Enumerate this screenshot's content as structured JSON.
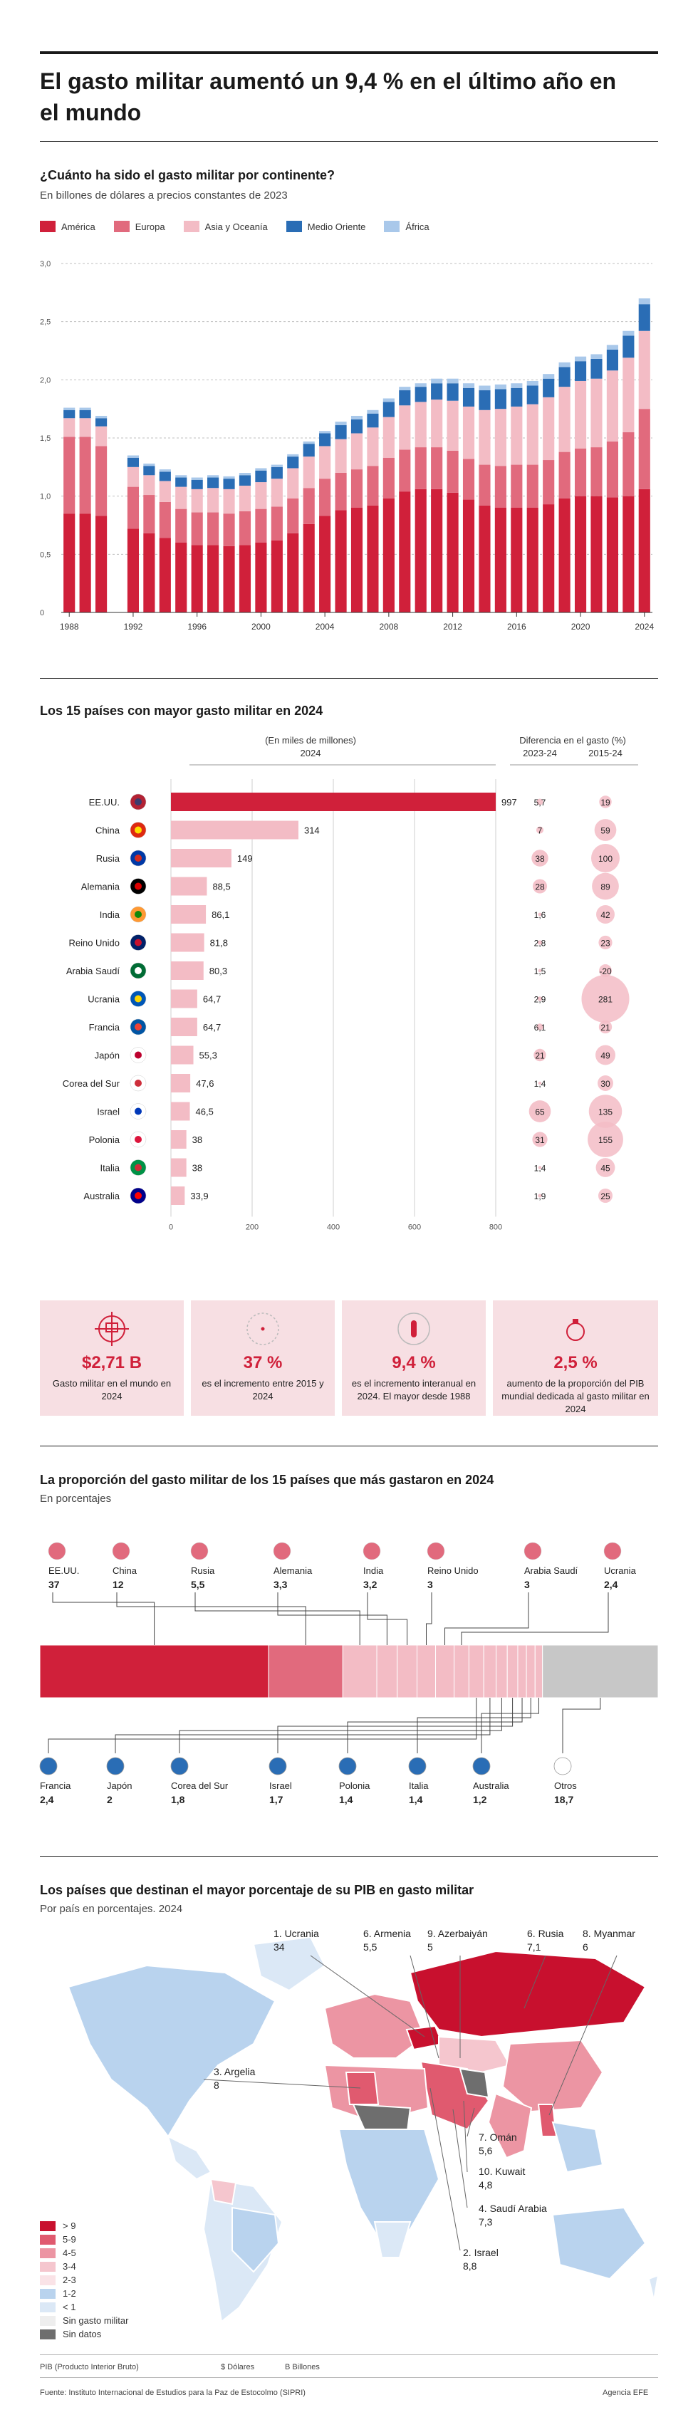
{
  "title": "El gasto militar aumentó un 9,4 % en el último año en el mundo",
  "continents": {
    "title": "¿Cuánto ha sido el gasto militar por continente?",
    "subtitle": "En billones de dólares a precios constantes de 2023",
    "legend": [
      {
        "name": "América",
        "color": "#d0203a"
      },
      {
        "name": "Europa",
        "color": "#e16a7d"
      },
      {
        "name": "Asia y Oceanía",
        "color": "#f3bcc5"
      },
      {
        "name": "Medio Oriente",
        "color": "#2a6db5"
      },
      {
        "name": "África",
        "color": "#a9c8ea"
      }
    ]
  },
  "chart_data": [
    {
      "type": "bar",
      "stacked": true,
      "title": "¿Cuánto ha sido el gasto militar por continente?",
      "ylabel": "En billones de dólares a precios constantes de 2023",
      "ylim": [
        0,
        3.0
      ],
      "yticks": [
        "3,0",
        "2,5",
        "2,0",
        "1,5",
        "1,0",
        "0,5",
        "0"
      ],
      "xtick_labels": [
        "1988",
        "1992",
        "1996",
        "2000",
        "2004",
        "2008",
        "2012",
        "2016",
        "2020",
        "2024"
      ],
      "gap_after": "1990",
      "categories": [
        "1988",
        "1989",
        "1990",
        "1992",
        "1993",
        "1994",
        "1995",
        "1996",
        "1997",
        "1998",
        "1999",
        "2000",
        "2001",
        "2002",
        "2003",
        "2004",
        "2005",
        "2006",
        "2007",
        "2008",
        "2009",
        "2010",
        "2011",
        "2012",
        "2013",
        "2014",
        "2015",
        "2016",
        "2017",
        "2018",
        "2019",
        "2020",
        "2021",
        "2022",
        "2023",
        "2024"
      ],
      "series": [
        {
          "name": "América",
          "values": [
            0.85,
            0.85,
            0.83,
            0.72,
            0.68,
            0.64,
            0.6,
            0.58,
            0.58,
            0.57,
            0.58,
            0.6,
            0.62,
            0.68,
            0.76,
            0.83,
            0.88,
            0.9,
            0.92,
            0.98,
            1.04,
            1.06,
            1.06,
            1.03,
            0.97,
            0.92,
            0.9,
            0.9,
            0.9,
            0.93,
            0.98,
            1.0,
            1.0,
            0.99,
            1.0,
            1.06
          ]
        },
        {
          "name": "Europa",
          "values": [
            0.66,
            0.66,
            0.6,
            0.36,
            0.33,
            0.31,
            0.29,
            0.28,
            0.28,
            0.28,
            0.29,
            0.29,
            0.29,
            0.3,
            0.31,
            0.32,
            0.32,
            0.33,
            0.34,
            0.35,
            0.36,
            0.36,
            0.36,
            0.36,
            0.35,
            0.35,
            0.36,
            0.37,
            0.37,
            0.38,
            0.4,
            0.41,
            0.42,
            0.48,
            0.55,
            0.69
          ]
        },
        {
          "name": "Asia y Oceanía",
          "values": [
            0.16,
            0.16,
            0.17,
            0.17,
            0.17,
            0.18,
            0.19,
            0.2,
            0.21,
            0.21,
            0.22,
            0.23,
            0.24,
            0.26,
            0.27,
            0.28,
            0.29,
            0.31,
            0.33,
            0.35,
            0.38,
            0.39,
            0.41,
            0.43,
            0.45,
            0.47,
            0.49,
            0.5,
            0.52,
            0.54,
            0.56,
            0.58,
            0.59,
            0.61,
            0.64,
            0.67
          ]
        },
        {
          "name": "Medio Oriente",
          "values": [
            0.07,
            0.07,
            0.07,
            0.08,
            0.08,
            0.08,
            0.08,
            0.08,
            0.09,
            0.09,
            0.09,
            0.1,
            0.1,
            0.1,
            0.11,
            0.11,
            0.12,
            0.12,
            0.12,
            0.13,
            0.13,
            0.13,
            0.14,
            0.15,
            0.16,
            0.17,
            0.17,
            0.16,
            0.16,
            0.16,
            0.17,
            0.17,
            0.17,
            0.18,
            0.19,
            0.23
          ]
        },
        {
          "name": "África",
          "values": [
            0.02,
            0.02,
            0.02,
            0.02,
            0.02,
            0.02,
            0.02,
            0.02,
            0.02,
            0.02,
            0.02,
            0.02,
            0.02,
            0.02,
            0.02,
            0.02,
            0.03,
            0.03,
            0.03,
            0.03,
            0.03,
            0.03,
            0.04,
            0.04,
            0.04,
            0.04,
            0.04,
            0.04,
            0.04,
            0.04,
            0.04,
            0.04,
            0.04,
            0.04,
            0.04,
            0.05
          ]
        }
      ]
    },
    {
      "type": "bar",
      "orientation": "horizontal",
      "title": "Los 15 países con mayor gasto militar en 2024",
      "header": "(En miles de millones)",
      "year": "2024",
      "xticks": [
        "0",
        "200",
        "400",
        "600",
        "800"
      ],
      "xlim": [
        0,
        800
      ],
      "categories": [
        "EE.UU.",
        "China",
        "Rusia",
        "Alemania",
        "India",
        "Reino Unido",
        "Arabia Saudí",
        "Ucrania",
        "Francia",
        "Japón",
        "Corea del Sur",
        "Israel",
        "Polonia",
        "Italia",
        "Australia"
      ],
      "values": [
        997,
        314,
        149,
        88.5,
        86.1,
        81.8,
        80.3,
        64.7,
        64.7,
        55.3,
        47.6,
        46.5,
        38,
        38,
        33.9
      ],
      "value_labels": [
        "997",
        "314",
        "149",
        "88,5",
        "86,1",
        "81,8",
        "80,3",
        "64,7",
        "64,7",
        "55,3",
        "47,6",
        "46,5",
        "38",
        "38",
        "33,9"
      ],
      "diff_header": "Diferencia en el gasto (%)",
      "diff_cols": [
        "2023-24",
        "2015-24"
      ],
      "diff_2023_24": [
        "5,7",
        "7",
        "38",
        "28",
        "1,6",
        "2,8",
        "1,5",
        "2,9",
        "6,1",
        "21",
        "1,4",
        "65",
        "31",
        "1,4",
        "1,9"
      ],
      "diff_2015_24": [
        "19",
        "59",
        "100",
        "89",
        "42",
        "23",
        "-20",
        "281",
        "21",
        "49",
        "30",
        "135",
        "155",
        "45",
        "25"
      ],
      "diff_2023_24_values": [
        5.7,
        7,
        38,
        28,
        1.6,
        2.8,
        1.5,
        2.9,
        6.1,
        21,
        1.4,
        65,
        31,
        1.4,
        1.9
      ],
      "diff_2015_24_values": [
        19,
        59,
        100,
        89,
        42,
        23,
        -20,
        281,
        21,
        49,
        30,
        135,
        155,
        45,
        25
      ]
    },
    {
      "type": "bar",
      "stacked": true,
      "orientation": "horizontal",
      "title": "La proporción del gasto militar de los 15 países que más gastaron en 2024",
      "subtitle": "En porcentajes",
      "categories": [
        "EE.UU.",
        "China",
        "Rusia",
        "Alemania",
        "India",
        "Reino Unido",
        "Arabia Saudí",
        "Ucrania",
        "Francia",
        "Japón",
        "Corea del Sur",
        "Israel",
        "Polonia",
        "Italia",
        "Australia",
        "Otros"
      ],
      "values": [
        37,
        12,
        5.5,
        3.3,
        3.2,
        3,
        3,
        2.4,
        2.4,
        2,
        1.8,
        1.7,
        1.4,
        1.4,
        1.2,
        18.7
      ],
      "value_labels": [
        "37",
        "12",
        "5,5",
        "3,3",
        "3,2",
        "3",
        "3",
        "2,4",
        "2,4",
        "2",
        "1,8",
        "1,7",
        "1,4",
        "1,4",
        "1,2",
        "18,7"
      ]
    }
  ],
  "top15": {
    "title": "Los 15 países con mayor gasto militar en 2024",
    "header": "(En miles de millones)",
    "year": "2024",
    "diff_header": "Diferencia en el gasto (%)",
    "diff_col1": "2023-24",
    "diff_col2": "2015-24"
  },
  "stats": [
    {
      "value": "$2,71 B",
      "desc": "Gasto militar en el mundo en 2024"
    },
    {
      "value": "37 %",
      "desc": "es el incremento entre 2015 y 2024"
    },
    {
      "value": "9,4 %",
      "desc": "es el incremento interanual en 2024. El mayor desde 1988"
    },
    {
      "value": "2,5 %",
      "desc": "aumento de la proporción del PIB mundial dedicada al gasto militar en 2024"
    }
  ],
  "share": {
    "title": "La proporción del gasto militar de los 15 países que más gastaron en 2024",
    "subtitle": "En porcentajes"
  },
  "map": {
    "title": "Los países que destinan el mayor porcentaje de su PIB en gasto militar",
    "subtitle": "Por país en porcentajes. 2024",
    "callouts": [
      {
        "name": "1. Ucrania",
        "value": "34"
      },
      {
        "name": "6. Armenia",
        "value": "5,5"
      },
      {
        "name": "9. Azerbaiyán",
        "value": "5"
      },
      {
        "name": "6. Rusia",
        "value": "7,1"
      },
      {
        "name": "8. Myanmar",
        "value": "6"
      },
      {
        "name": "3. Argelia",
        "value": "8"
      },
      {
        "name": "7. Omán",
        "value": "5,6"
      },
      {
        "name": "10. Kuwait",
        "value": "4,8"
      },
      {
        "name": "4. Saudí Arabia",
        "value": "7,3"
      },
      {
        "name": "2. Israel",
        "value": "8,8"
      }
    ],
    "legend": [
      {
        "label": "> 9",
        "color": "#c8102e"
      },
      {
        "label": "5-9",
        "color": "#e05a6f"
      },
      {
        "label": "4-5",
        "color": "#ec95a3"
      },
      {
        "label": "3-4",
        "color": "#f5c6ce"
      },
      {
        "label": "2-3",
        "color": "#fae3e7"
      },
      {
        "label": "1-2",
        "color": "#b9d3ee"
      },
      {
        "label": "< 1",
        "color": "#dbe8f6"
      },
      {
        "label": "Sin gasto militar",
        "color": "#eeeeee"
      },
      {
        "label": "Sin datos",
        "color": "#6e6e6e"
      }
    ]
  },
  "footer": {
    "note1": "PIB (Producto Interior Bruto)",
    "note2": "$ Dólares",
    "note3": "B Billones",
    "source": "Fuente: Instituto Internacional de Estudios para la Paz de Estocolmo (SIPRI)",
    "agency": "Agencia EFE"
  }
}
